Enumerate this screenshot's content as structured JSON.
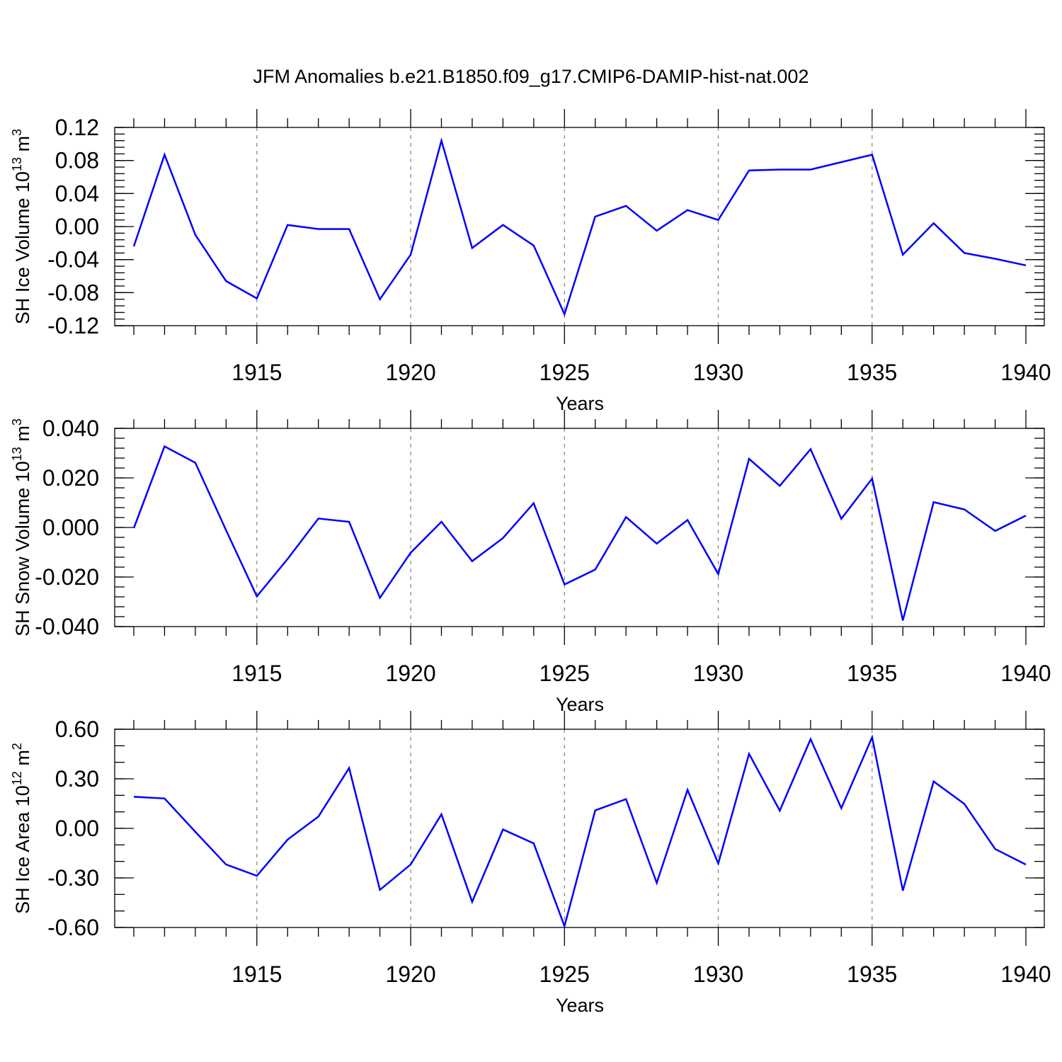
{
  "title": "JFM Anomalies b.e21.B1850.f09_g17.CMIP6-DAMIP-hist-nat.002",
  "chart_data": [
    {
      "type": "line",
      "name": "ice-volume",
      "ylabel_text": "SH Ice Volume 10",
      "ylabel_exp": "13",
      "ylabel_unit": "m",
      "ylabel_unit_exp": "3",
      "xlabel": "Years",
      "xlim": [
        1911,
        1940
      ],
      "ylim": [
        -0.12,
        0.12
      ],
      "xticks": [
        1915,
        1920,
        1925,
        1930,
        1935,
        1940
      ],
      "yticks": [
        -0.12,
        -0.08,
        -0.04,
        0.0,
        0.04,
        0.08,
        0.12
      ],
      "ytick_labels": [
        "-0.12",
        "-0.08",
        "-0.04",
        "0.00",
        "0.04",
        "0.08",
        "0.12"
      ],
      "ytick_minor_step": 0.008,
      "grid_x": true,
      "color": "#0000ff",
      "x": [
        1911,
        1912,
        1913,
        1914,
        1915,
        1916,
        1917,
        1918,
        1919,
        1920,
        1921,
        1922,
        1923,
        1924,
        1925,
        1926,
        1927,
        1928,
        1929,
        1930,
        1931,
        1932,
        1933,
        1934,
        1935,
        1936,
        1937,
        1938,
        1939,
        1940
      ],
      "values": [
        -0.024,
        0.087,
        -0.01,
        -0.066,
        -0.087,
        0.002,
        -0.003,
        -0.003,
        -0.088,
        -0.034,
        0.104,
        -0.026,
        0.002,
        -0.023,
        -0.106,
        0.012,
        0.025,
        -0.005,
        0.02,
        0.008,
        0.068,
        0.069,
        0.069,
        0.078,
        0.087,
        -0.034,
        0.004,
        -0.032,
        -0.039,
        -0.047
      ]
    },
    {
      "type": "line",
      "name": "snow-volume",
      "ylabel_text": "SH Snow Volume 10",
      "ylabel_exp": "13",
      "ylabel_unit": "m",
      "ylabel_unit_exp": "3",
      "xlabel": "Years",
      "xlim": [
        1911,
        1940
      ],
      "ylim": [
        -0.04,
        0.04
      ],
      "xticks": [
        1915,
        1920,
        1925,
        1930,
        1935,
        1940
      ],
      "yticks": [
        -0.04,
        -0.02,
        0.0,
        0.02,
        0.04
      ],
      "ytick_labels": [
        "-0.040",
        "-0.020",
        "0.000",
        "0.020",
        "0.040"
      ],
      "ytick_minor_step": 0.004,
      "grid_x": true,
      "color": "#0000ff",
      "x": [
        1911,
        1912,
        1913,
        1914,
        1915,
        1916,
        1917,
        1918,
        1919,
        1920,
        1921,
        1922,
        1923,
        1924,
        1925,
        1926,
        1927,
        1928,
        1929,
        1930,
        1931,
        1932,
        1933,
        1934,
        1935,
        1936,
        1937,
        1938,
        1939,
        1940
      ],
      "values": [
        -0.0003,
        0.0327,
        0.0261,
        -0.0011,
        -0.0278,
        -0.0127,
        0.0036,
        0.0023,
        -0.0284,
        -0.0102,
        0.0023,
        -0.0136,
        -0.0043,
        0.0098,
        -0.023,
        -0.017,
        0.0042,
        -0.0065,
        0.003,
        -0.0188,
        0.0277,
        0.0168,
        0.0316,
        0.0035,
        0.0197,
        -0.0375,
        0.0102,
        0.0073,
        -0.0014,
        0.0048
      ]
    },
    {
      "type": "line",
      "name": "ice-area",
      "ylabel_text": "SH Ice Area 10",
      "ylabel_exp": "12",
      "ylabel_unit": "m",
      "ylabel_unit_exp": "2",
      "xlabel": "Years",
      "xlim": [
        1911,
        1940
      ],
      "ylim": [
        -0.6,
        0.6
      ],
      "xticks": [
        1915,
        1920,
        1925,
        1930,
        1935,
        1940
      ],
      "yticks": [
        -0.6,
        -0.3,
        0.0,
        0.3,
        0.6
      ],
      "ytick_labels": [
        "-0.60",
        "-0.30",
        "0.00",
        "0.30",
        "0.60"
      ],
      "ytick_minor_step": 0.1,
      "grid_x": true,
      "color": "#0000ff",
      "x": [
        1911,
        1912,
        1913,
        1914,
        1915,
        1916,
        1917,
        1918,
        1919,
        1920,
        1921,
        1922,
        1923,
        1924,
        1925,
        1926,
        1927,
        1928,
        1929,
        1930,
        1931,
        1932,
        1933,
        1934,
        1935,
        1936,
        1937,
        1938,
        1939,
        1940
      ],
      "values": [
        0.191,
        0.181,
        -0.021,
        -0.219,
        -0.287,
        -0.068,
        0.071,
        0.365,
        -0.372,
        -0.219,
        0.085,
        -0.445,
        -0.007,
        -0.091,
        -0.592,
        0.109,
        0.177,
        -0.33,
        0.233,
        -0.212,
        0.451,
        0.107,
        0.54,
        0.122,
        0.551,
        -0.377,
        0.284,
        0.148,
        -0.125,
        -0.219
      ]
    }
  ]
}
